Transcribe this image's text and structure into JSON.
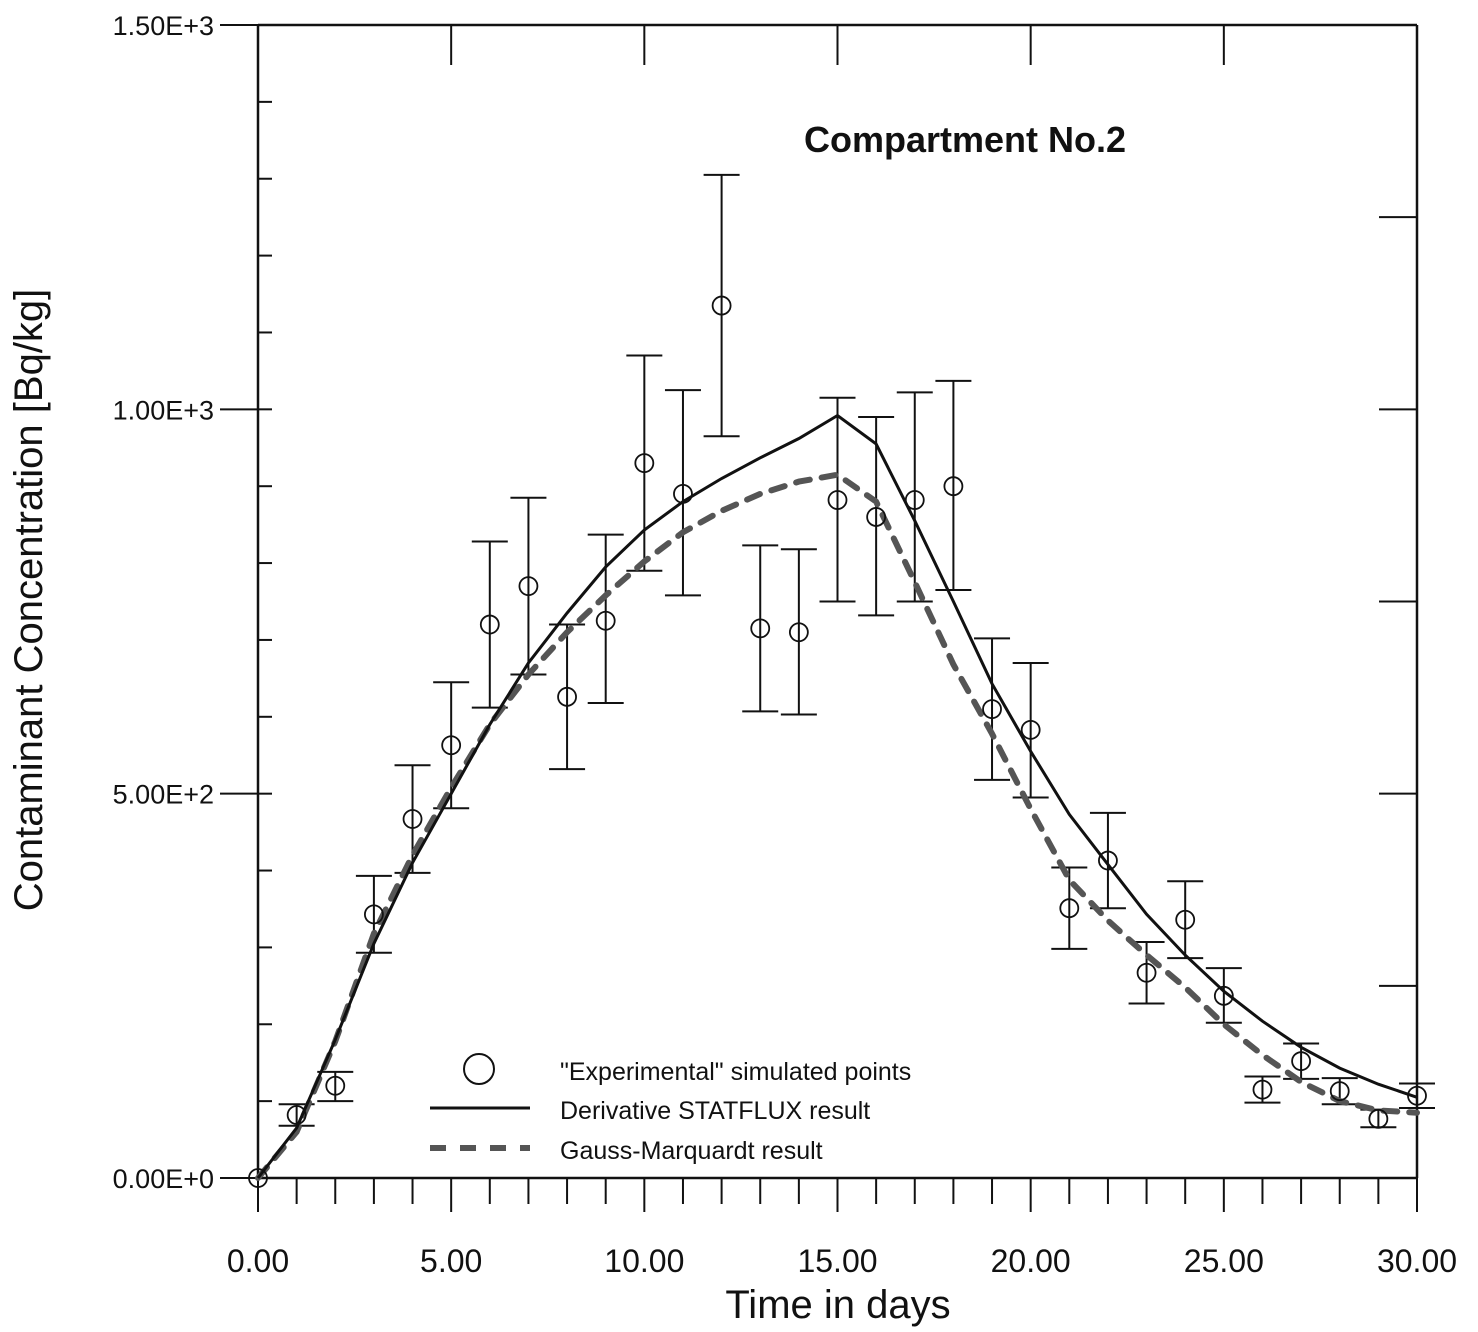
{
  "chart_data": {
    "type": "scatter",
    "title": "Compartment No.2",
    "xlabel": "Time in days",
    "ylabel": "Contaminant Concentration [Bq/kg]",
    "xlim": [
      0,
      30
    ],
    "ylim": [
      0,
      1500
    ],
    "x_ticks": [
      "0.00",
      "5.00",
      "10.00",
      "15.00",
      "20.00",
      "25.00",
      "30.00"
    ],
    "y_ticks": [
      "0.00E+0",
      "5.00E+2",
      "1.00E+3",
      "1.50E+3"
    ],
    "grid": false,
    "legend_position": "bottom-center",
    "series": [
      {
        "name": "\"Experimental\" simulated points",
        "style": "open-circle-with-error-bars",
        "points": [
          {
            "x": 0,
            "y": 0,
            "lo": 0,
            "hi": 0
          },
          {
            "x": 1,
            "y": 82,
            "lo": 68,
            "hi": 96
          },
          {
            "x": 2,
            "y": 120,
            "lo": 100,
            "hi": 138
          },
          {
            "x": 3,
            "y": 343,
            "lo": 293,
            "hi": 393
          },
          {
            "x": 4,
            "y": 467,
            "lo": 397,
            "hi": 537
          },
          {
            "x": 5,
            "y": 563,
            "lo": 481,
            "hi": 645
          },
          {
            "x": 6,
            "y": 720,
            "lo": 612,
            "hi": 828
          },
          {
            "x": 7,
            "y": 770,
            "lo": 655,
            "hi": 885
          },
          {
            "x": 8,
            "y": 626,
            "lo": 532,
            "hi": 720
          },
          {
            "x": 9,
            "y": 725,
            "lo": 618,
            "hi": 837
          },
          {
            "x": 10,
            "y": 930,
            "lo": 790,
            "hi": 1070
          },
          {
            "x": 11,
            "y": 890,
            "lo": 758,
            "hi": 1025
          },
          {
            "x": 12,
            "y": 1135,
            "lo": 965,
            "hi": 1305
          },
          {
            "x": 13,
            "y": 715,
            "lo": 607,
            "hi": 823
          },
          {
            "x": 14,
            "y": 710,
            "lo": 603,
            "hi": 818
          },
          {
            "x": 15,
            "y": 882,
            "lo": 750,
            "hi": 1015
          },
          {
            "x": 16,
            "y": 860,
            "lo": 732,
            "hi": 990
          },
          {
            "x": 17,
            "y": 882,
            "lo": 750,
            "hi": 1022
          },
          {
            "x": 18,
            "y": 900,
            "lo": 765,
            "hi": 1037
          },
          {
            "x": 19,
            "y": 610,
            "lo": 518,
            "hi": 702
          },
          {
            "x": 20,
            "y": 583,
            "lo": 495,
            "hi": 670
          },
          {
            "x": 21,
            "y": 351,
            "lo": 298,
            "hi": 404
          },
          {
            "x": 22,
            "y": 413,
            "lo": 351,
            "hi": 475
          },
          {
            "x": 23,
            "y": 267,
            "lo": 227,
            "hi": 307
          },
          {
            "x": 24,
            "y": 336,
            "lo": 286,
            "hi": 386
          },
          {
            "x": 25,
            "y": 237,
            "lo": 202,
            "hi": 273
          },
          {
            "x": 26,
            "y": 115,
            "lo": 98,
            "hi": 132
          },
          {
            "x": 27,
            "y": 152,
            "lo": 129,
            "hi": 175
          },
          {
            "x": 28,
            "y": 113,
            "lo": 96,
            "hi": 130
          },
          {
            "x": 29,
            "y": 77,
            "lo": 66,
            "hi": 89
          },
          {
            "x": 30,
            "y": 107,
            "lo": 91,
            "hi": 123
          }
        ]
      },
      {
        "name": "Derivative STATFLUX result",
        "style": "solid",
        "x": [
          0,
          1,
          2,
          3,
          4,
          5,
          6,
          7,
          8,
          9,
          10,
          11,
          12,
          13,
          14,
          15,
          16,
          17,
          18,
          19,
          20,
          21,
          22,
          23,
          24,
          25,
          26,
          27,
          28,
          29,
          30
        ],
        "y": [
          0,
          65,
          180,
          305,
          410,
          500,
          590,
          670,
          735,
          795,
          843,
          880,
          910,
          937,
          962,
          992,
          955,
          855,
          750,
          643,
          555,
          473,
          408,
          343,
          290,
          243,
          204,
          170,
          143,
          122,
          105
        ]
      },
      {
        "name": "Gauss-Marquardt result",
        "style": "dashed",
        "x": [
          0,
          1,
          2,
          3,
          4,
          5,
          6,
          7,
          8,
          9,
          10,
          11,
          12,
          13,
          14,
          15,
          16,
          17,
          18,
          19,
          20,
          21,
          22,
          23,
          24,
          25,
          26,
          27,
          28,
          29,
          30
        ],
        "y": [
          0,
          60,
          178,
          318,
          420,
          508,
          590,
          655,
          710,
          758,
          802,
          840,
          868,
          890,
          906,
          915,
          880,
          775,
          668,
          578,
          480,
          388,
          335,
          290,
          248,
          200,
          160,
          125,
          100,
          88,
          85
        ]
      }
    ],
    "legend": {
      "items": [
        "\"Experimental\" simulated points",
        "Derivative STATFLUX result",
        "Gauss-Marquardt result"
      ]
    }
  }
}
